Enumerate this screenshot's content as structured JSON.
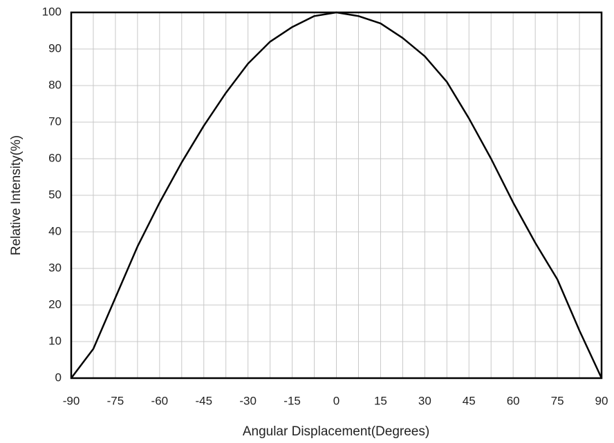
{
  "chart_data": {
    "type": "line",
    "xlabel": "Angular Displacement(Degrees)",
    "ylabel": "Relative Intensity(%)",
    "x": [
      -90,
      -82.5,
      -75,
      -67.5,
      -60,
      -52.5,
      -45,
      -37.5,
      -30,
      -22.5,
      -15,
      -7.5,
      0,
      7.5,
      15,
      22.5,
      30,
      37.5,
      45,
      52.5,
      60,
      67.5,
      75,
      82.5,
      90
    ],
    "series": [
      {
        "color": "#000000",
        "values": [
          0,
          8,
          22,
          36,
          48,
          59,
          69,
          78,
          86,
          92,
          96,
          99,
          100,
          99,
          97,
          93,
          88,
          81,
          71,
          60,
          48,
          37,
          27,
          13,
          0
        ]
      }
    ],
    "xlim": [
      -90,
      90
    ],
    "xticks": [
      -90,
      -75,
      -60,
      -45,
      -30,
      -15,
      0,
      15,
      30,
      45,
      60,
      75,
      90
    ],
    "xminorticks": [
      -82.5,
      -67.5,
      -52.5,
      -37.5,
      -22.5,
      -7.5,
      7.5,
      22.5,
      37.5,
      52.5,
      67.5,
      82.5
    ],
    "ylim": [
      0,
      100
    ],
    "yticks": [
      0,
      10,
      20,
      30,
      40,
      50,
      60,
      70,
      80,
      90,
      100
    ],
    "grid": true
  }
}
